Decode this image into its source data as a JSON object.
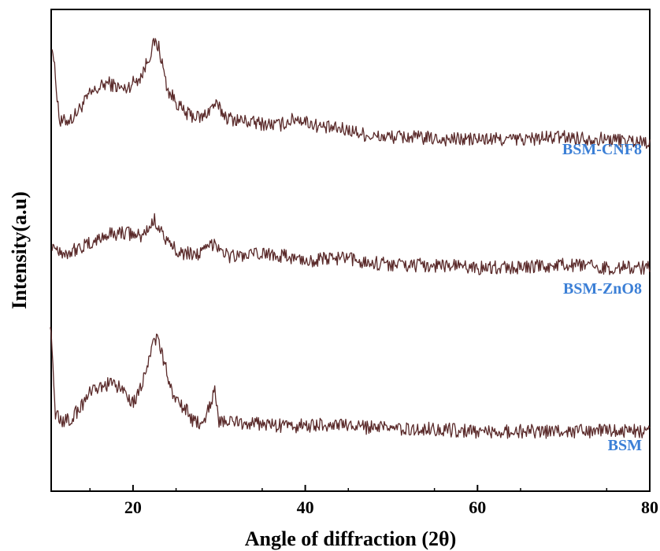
{
  "chart_data": {
    "type": "line",
    "xlabel": "Angle of diffraction (2θ)",
    "ylabel": "Intensity(a.u)",
    "xlim": [
      10.5,
      80
    ],
    "xticks": [
      20,
      40,
      60,
      80
    ],
    "yticks_shown": false,
    "grid": false,
    "legend": "inline labels at right end of each curve",
    "stacked_offset": true,
    "colors": {
      "line": "#5a2a2a",
      "label": "#3b7fd6",
      "axis": "#000000"
    },
    "series": [
      {
        "name": "BSM-CNF8",
        "x": [
          10.6,
          11.5,
          13,
          15,
          17,
          19,
          21,
          22.5,
          23,
          24,
          26,
          28,
          29.5,
          31,
          34,
          37,
          39,
          42,
          45,
          48,
          52,
          56,
          60,
          65,
          70,
          75,
          80
        ],
        "values": [
          62,
          28,
          30,
          40,
          45,
          42,
          48,
          62,
          60,
          42,
          32,
          30,
          36,
          30,
          28,
          27,
          30,
          26,
          25,
          22,
          22,
          21,
          21,
          21,
          22,
          21,
          20
        ]
      },
      {
        "name": "BSM-ZnO8",
        "x": [
          10.6,
          12,
          15,
          17,
          19,
          21,
          22.5,
          23,
          24,
          26,
          28,
          29.5,
          31,
          33,
          36,
          40,
          44,
          48,
          52,
          56,
          60,
          65,
          70,
          75,
          80
        ],
        "values": [
          30,
          26,
          30,
          34,
          35,
          33,
          40,
          38,
          30,
          26,
          26,
          31,
          25,
          25,
          26,
          23,
          24,
          22,
          21,
          21,
          20,
          20,
          21,
          20,
          20
        ]
      },
      {
        "name": "BSM",
        "x": [
          10.4,
          11,
          12,
          13,
          15,
          17,
          19,
          20,
          21,
          22.5,
          23,
          24,
          25,
          26,
          27,
          28,
          29.5,
          30,
          32,
          35,
          38,
          42,
          46,
          50,
          55,
          60,
          65,
          70,
          75,
          80
        ],
        "values": [
          65,
          25,
          22,
          24,
          34,
          38,
          36,
          30,
          38,
          58,
          55,
          42,
          30,
          28,
          22,
          21,
          35,
          22,
          22,
          21,
          20,
          21,
          20,
          19,
          19,
          18,
          18,
          18,
          18,
          18
        ]
      }
    ]
  }
}
